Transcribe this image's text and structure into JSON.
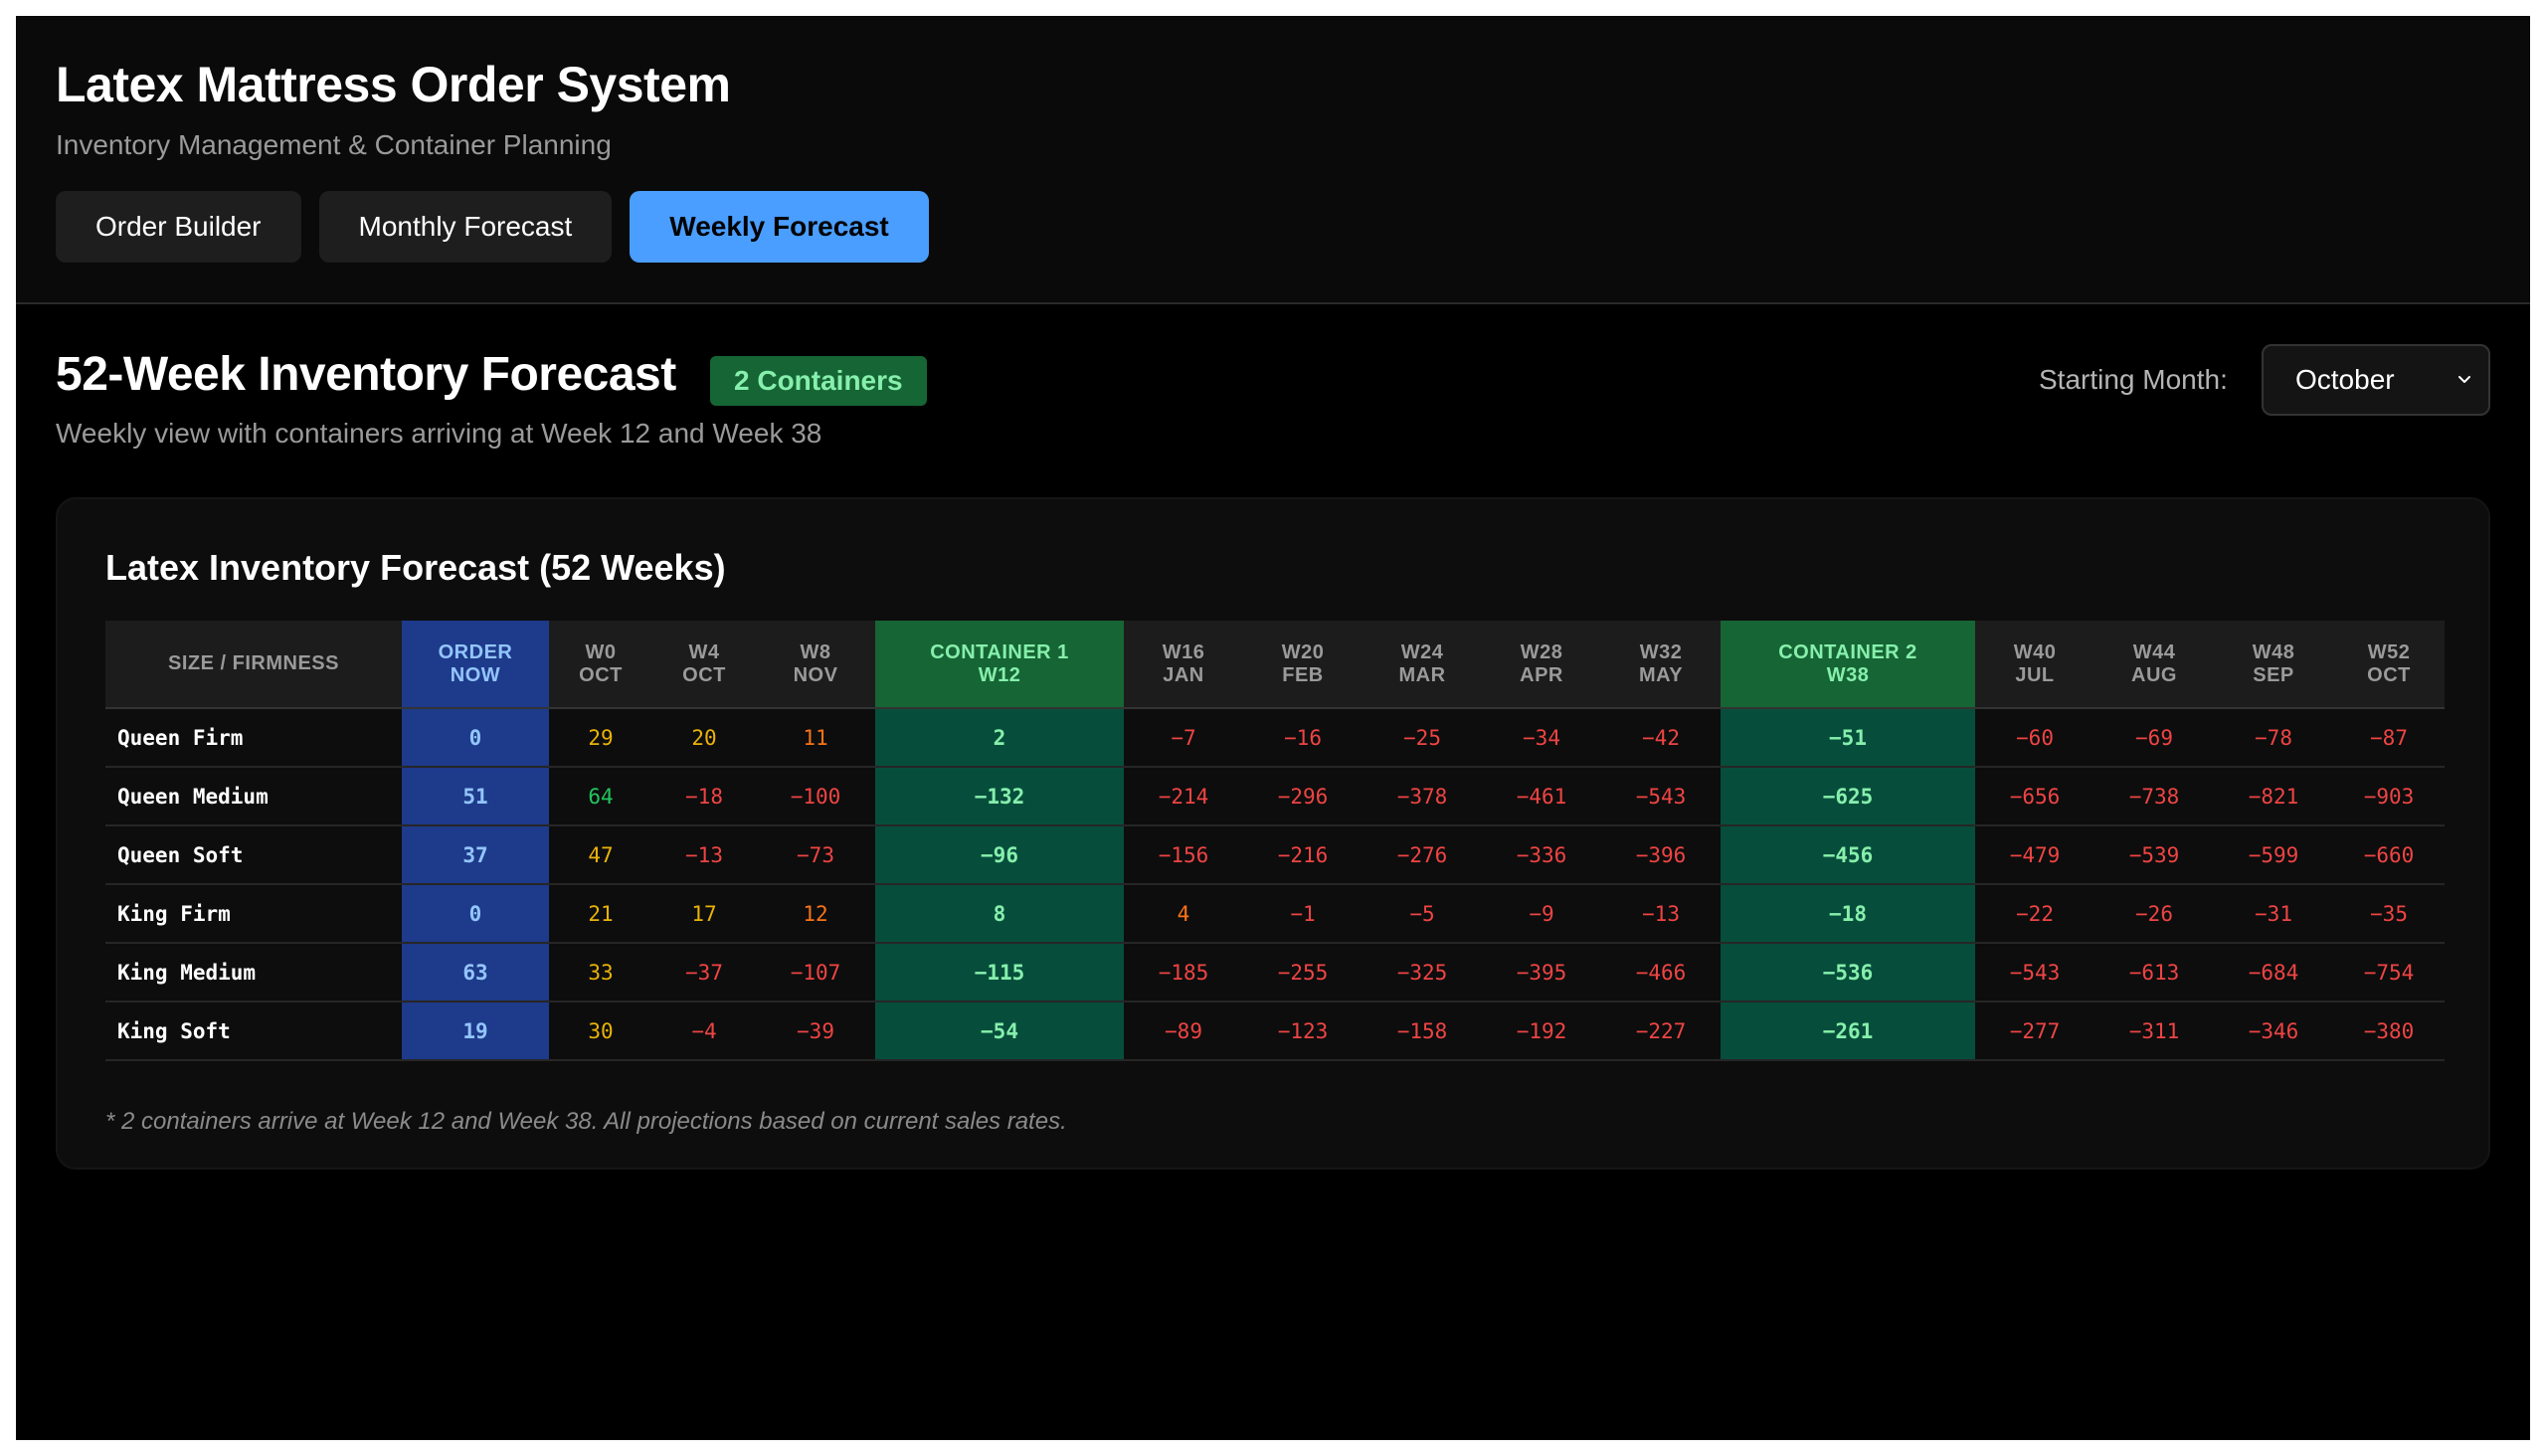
{
  "app": {
    "title": "Latex Mattress Order System",
    "subtitle": "Inventory Management & Container Planning"
  },
  "tabs": [
    {
      "label": "Order Builder",
      "active": false
    },
    {
      "label": "Monthly Forecast",
      "active": false
    },
    {
      "label": "Weekly Forecast",
      "active": true
    }
  ],
  "section": {
    "title": "52-Week Inventory Forecast",
    "badge": "2 Containers",
    "subtitle": "Weekly view with containers arriving at Week 12 and Week 38",
    "month_label": "Starting Month:",
    "month_value": "October"
  },
  "card": {
    "title": "Latex Inventory Forecast (52 Weeks)",
    "footnote": "* 2 containers arrive at Week 12 and Week 38. All projections based on current sales rates."
  },
  "table": {
    "columns": [
      {
        "line1": "SIZE / FIRMNESS",
        "line2": "",
        "kind": "size"
      },
      {
        "line1": "ORDER",
        "line2": "NOW",
        "kind": "order"
      },
      {
        "line1": "W0",
        "line2": "OCT",
        "kind": "week"
      },
      {
        "line1": "W4",
        "line2": "OCT",
        "kind": "week"
      },
      {
        "line1": "W8",
        "line2": "NOV",
        "kind": "week"
      },
      {
        "line1": "CONTAINER 1",
        "line2": "W12",
        "kind": "container"
      },
      {
        "line1": "W16",
        "line2": "JAN",
        "kind": "week"
      },
      {
        "line1": "W20",
        "line2": "FEB",
        "kind": "week"
      },
      {
        "line1": "W24",
        "line2": "MAR",
        "kind": "week"
      },
      {
        "line1": "W28",
        "line2": "APR",
        "kind": "week"
      },
      {
        "line1": "W32",
        "line2": "MAY",
        "kind": "week"
      },
      {
        "line1": "CONTAINER 2",
        "line2": "W38",
        "kind": "container"
      },
      {
        "line1": "W40",
        "line2": "JUL",
        "kind": "week"
      },
      {
        "line1": "W44",
        "line2": "AUG",
        "kind": "week"
      },
      {
        "line1": "W48",
        "line2": "SEP",
        "kind": "week"
      },
      {
        "line1": "W52",
        "line2": "OCT",
        "kind": "week"
      }
    ],
    "rows": [
      {
        "name": "Queen Firm",
        "values": [
          "0",
          "29",
          "20",
          "11",
          "2",
          "−7",
          "−16",
          "−25",
          "−34",
          "−42",
          "−51",
          "−60",
          "−69",
          "−78",
          "−87"
        ]
      },
      {
        "name": "Queen Medium",
        "values": [
          "51",
          "64",
          "−18",
          "−100",
          "−132",
          "−214",
          "−296",
          "−378",
          "−461",
          "−543",
          "−625",
          "−656",
          "−738",
          "−821",
          "−903"
        ]
      },
      {
        "name": "Queen Soft",
        "values": [
          "37",
          "47",
          "−13",
          "−73",
          "−96",
          "−156",
          "−216",
          "−276",
          "−336",
          "−396",
          "−456",
          "−479",
          "−539",
          "−599",
          "−660"
        ]
      },
      {
        "name": "King Firm",
        "values": [
          "0",
          "21",
          "17",
          "12",
          "8",
          "4",
          "−1",
          "−5",
          "−9",
          "−13",
          "−18",
          "−22",
          "−26",
          "−31",
          "−35"
        ]
      },
      {
        "name": "King Medium",
        "values": [
          "63",
          "33",
          "−37",
          "−107",
          "−115",
          "−185",
          "−255",
          "−325",
          "−395",
          "−466",
          "−536",
          "−543",
          "−613",
          "−684",
          "−754"
        ]
      },
      {
        "name": "King Soft",
        "values": [
          "19",
          "30",
          "−4",
          "−39",
          "−54",
          "−89",
          "−123",
          "−158",
          "−192",
          "−227",
          "−261",
          "−277",
          "−311",
          "−346",
          "−380"
        ]
      }
    ]
  },
  "colors": {
    "accent": "#4a9eff",
    "order_bg": "#1e3a8a",
    "container_header_bg": "#166534",
    "container_cell_bg": "#064e3b",
    "positive_high": "#22c55e",
    "positive_mid": "#eab308",
    "low": "#f97316",
    "negative": "#ef4444"
  }
}
